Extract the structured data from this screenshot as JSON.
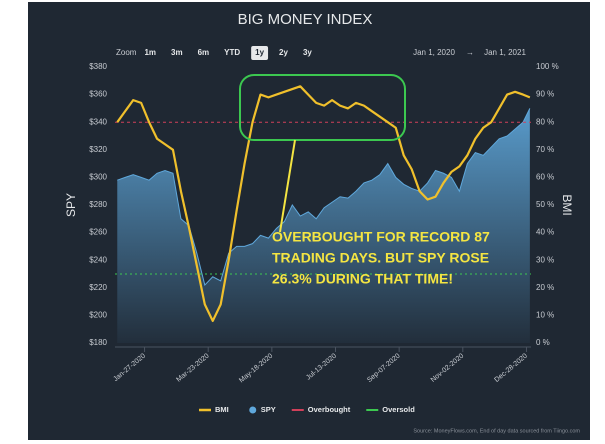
{
  "chart_data": {
    "type": "line",
    "title": "BIG MONEY INDEX",
    "y_label": "SPY",
    "y2_label": "BMI",
    "x": [
      "2020-01-03",
      "2020-01-10",
      "2020-01-17",
      "2020-01-24",
      "2020-01-31",
      "2020-02-07",
      "2020-02-14",
      "2020-02-21",
      "2020-02-28",
      "2020-03-06",
      "2020-03-13",
      "2020-03-20",
      "2020-03-27",
      "2020-04-03",
      "2020-04-10",
      "2020-04-17",
      "2020-04-24",
      "2020-05-01",
      "2020-05-08",
      "2020-05-15",
      "2020-05-22",
      "2020-05-29",
      "2020-06-05",
      "2020-06-12",
      "2020-06-19",
      "2020-06-26",
      "2020-07-03",
      "2020-07-10",
      "2020-07-17",
      "2020-07-24",
      "2020-07-31",
      "2020-08-07",
      "2020-08-14",
      "2020-08-21",
      "2020-08-28",
      "2020-09-04",
      "2020-09-11",
      "2020-09-18",
      "2020-09-25",
      "2020-10-02",
      "2020-10-09",
      "2020-10-16",
      "2020-10-23",
      "2020-10-30",
      "2020-11-06",
      "2020-11-13",
      "2020-11-20",
      "2020-11-27",
      "2020-12-04",
      "2020-12-11",
      "2020-12-18",
      "2020-12-25",
      "2020-12-31"
    ],
    "series": [
      {
        "name": "BMI",
        "color": "#f0c02c",
        "axis": "y2",
        "values": [
          80,
          84,
          88,
          87,
          80,
          74,
          72,
          70,
          55,
          42,
          28,
          14,
          8,
          14,
          30,
          48,
          65,
          80,
          90,
          89,
          90,
          91,
          92,
          93,
          90,
          87,
          86,
          88,
          86,
          85,
          87,
          86,
          84,
          82,
          80,
          78,
          68,
          63,
          55,
          52,
          53,
          58,
          62,
          64,
          68,
          74,
          78,
          80,
          85,
          90,
          91,
          90,
          89
        ]
      },
      {
        "name": "SPY",
        "color": "#5fa8dc",
        "axis": "y",
        "area": true,
        "values": [
          298,
          300,
          302,
          300,
          298,
          303,
          305,
          303,
          270,
          265,
          245,
          222,
          228,
          225,
          245,
          250,
          250,
          252,
          258,
          256,
          263,
          268,
          280,
          272,
          275,
          270,
          278,
          282,
          286,
          285,
          290,
          296,
          298,
          302,
          310,
          300,
          295,
          292,
          290,
          296,
          305,
          303,
          300,
          290,
          310,
          318,
          316,
          322,
          328,
          330,
          335,
          340,
          350
        ]
      }
    ],
    "reference_lines": [
      {
        "name": "Overbought",
        "value": 80,
        "color": "#d0405a",
        "axis": "y2",
        "dash": "3,3"
      },
      {
        "name": "Oversold",
        "value": 25,
        "color": "#3cc850",
        "axis": "y2",
        "dash": "2,3"
      }
    ],
    "xlim": [
      "2020-01-01",
      "2021-01-01"
    ],
    "xticks": [
      {
        "value": "2020-01-27",
        "label": "Jan-27-2020"
      },
      {
        "value": "2020-03-23",
        "label": "Mar-23-2020"
      },
      {
        "value": "2020-05-18",
        "label": "May-18-2020"
      },
      {
        "value": "2020-07-13",
        "label": "Jul-13-2020"
      },
      {
        "value": "2020-09-07",
        "label": "Sep-07-2020"
      },
      {
        "value": "2020-11-02",
        "label": "Nov-02-2020"
      },
      {
        "value": "2020-12-28",
        "label": "Dec-28-2020"
      }
    ],
    "ylim": [
      180,
      380
    ],
    "yticks": [
      {
        "value": 180,
        "label": "$180"
      },
      {
        "value": 200,
        "label": "$200"
      },
      {
        "value": 220,
        "label": "$220"
      },
      {
        "value": 240,
        "label": "$240"
      },
      {
        "value": 260,
        "label": "$260"
      },
      {
        "value": 280,
        "label": "$280"
      },
      {
        "value": 300,
        "label": "$300"
      },
      {
        "value": 320,
        "label": "$320"
      },
      {
        "value": 340,
        "label": "$340"
      },
      {
        "value": 360,
        "label": "$360"
      },
      {
        "value": 380,
        "label": "$380"
      }
    ],
    "y2lim": [
      0,
      100
    ],
    "y2ticks": [
      {
        "value": 0,
        "label": "0 %"
      },
      {
        "value": 10,
        "label": "10 %"
      },
      {
        "value": 20,
        "label": "20 %"
      },
      {
        "value": 30,
        "label": "30 %"
      },
      {
        "value": 40,
        "label": "40 %"
      },
      {
        "value": 50,
        "label": "50 %"
      },
      {
        "value": 60,
        "label": "60 %"
      },
      {
        "value": 70,
        "label": "70 %"
      },
      {
        "value": 80,
        "label": "80 %"
      },
      {
        "value": 90,
        "label": "90 %"
      },
      {
        "value": 100,
        "label": "100 %"
      }
    ],
    "annotation": [
      "OVERBOUGHT FOR RECORD 87",
      "TRADING DAYS. BUT SPY ROSE",
      "26.3% DURING THAT TIME!"
    ],
    "legend": "bottom"
  },
  "range_selector": {
    "label": "Zoom",
    "options": [
      "1m",
      "3m",
      "6m",
      "YTD",
      "1y",
      "2y",
      "3y"
    ],
    "selected_index": 4
  },
  "date_range": {
    "from": "Jan 1, 2020",
    "arrow": "→",
    "to": "Jan 1, 2021"
  },
  "source": "Source: MoneyFlows.com, End of day data sourced from Tiingo.com"
}
